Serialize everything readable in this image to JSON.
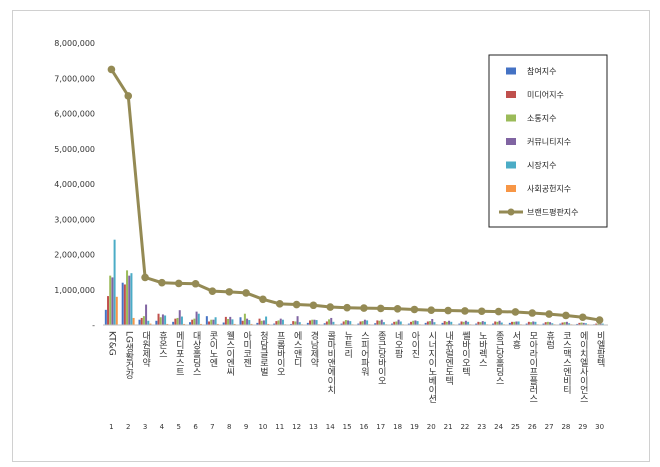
{
  "chart_data": {
    "type": "bar",
    "title": "",
    "xlabel": "",
    "ylabel": "",
    "ylim": [
      0,
      8000000
    ],
    "y_ticks": [
      "-",
      "1,000,000",
      "2,000,000",
      "3,000,000",
      "4,000,000",
      "5,000,000",
      "6,000,000",
      "7,000,000",
      "8,000,000"
    ],
    "grid": false,
    "legend_position": "top-right",
    "indices": [
      "1",
      "2",
      "3",
      "4",
      "5",
      "6",
      "7",
      "8",
      "9",
      "10",
      "11",
      "12",
      "13",
      "14",
      "15",
      "16",
      "17",
      "18",
      "19",
      "20",
      "21",
      "22",
      "23",
      "24",
      "25",
      "26",
      "27",
      "28",
      "29",
      "30"
    ],
    "categories": [
      "KT&G",
      "LG생활건강",
      "대원제약",
      "휴온스",
      "메디포스트",
      "대상홀딩스",
      "콧이노엔",
      "웰스이엔씨",
      "아미코젠",
      "청담글로벌",
      "프롬바이오",
      "에스앤디",
      "경남제약",
      "콜마비앤에이치",
      "뉴트리",
      "스피어파워",
      "종근당바이오",
      "네오팜",
      "아이진",
      "시너지이노베이션",
      "내츄럴엔도텍",
      "쎌바이오텍",
      "노바렉스",
      "종근당홀딩스",
      "서흥",
      "모아라이프플러스",
      "휴럼",
      "코스맥스엔비티",
      "에이치엘사이언스",
      "비엘팜텍"
    ],
    "series": [
      {
        "name": "참여지수",
        "color": "#4472c4",
        "values": [
          430000,
          1200000,
          150000,
          120000,
          90000,
          80000,
          250000,
          70000,
          220000,
          60000,
          40000,
          30000,
          60000,
          50000,
          40000,
          40000,
          50000,
          40000,
          40000,
          60000,
          60000,
          40000,
          40000,
          40000,
          60000,
          40000,
          40000,
          40000,
          30000,
          20000
        ]
      },
      {
        "name": "미디어지수",
        "color": "#c0504d",
        "values": [
          820000,
          1150000,
          200000,
          320000,
          180000,
          150000,
          100000,
          230000,
          120000,
          180000,
          110000,
          110000,
          130000,
          100000,
          100000,
          100000,
          130000,
          90000,
          90000,
          100000,
          110000,
          100000,
          90000,
          100000,
          90000,
          90000,
          80000,
          70000,
          60000,
          40000
        ]
      },
      {
        "name": "소통지수",
        "color": "#9bbb59",
        "values": [
          1400000,
          1550000,
          250000,
          220000,
          200000,
          180000,
          150000,
          170000,
          320000,
          120000,
          130000,
          100000,
          150000,
          160000,
          140000,
          110000,
          120000,
          100000,
          120000,
          110000,
          90000,
          90000,
          80000,
          90000,
          90000,
          80000,
          90000,
          80000,
          70000,
          40000
        ]
      },
      {
        "name": "커뮤니티지수",
        "color": "#8064a2",
        "values": [
          1350000,
          1400000,
          580000,
          300000,
          420000,
          380000,
          150000,
          230000,
          180000,
          130000,
          180000,
          250000,
          150000,
          200000,
          130000,
          150000,
          150000,
          150000,
          130000,
          170000,
          120000,
          120000,
          110000,
          120000,
          100000,
          100000,
          80000,
          90000,
          60000,
          40000
        ]
      },
      {
        "name": "시장지수",
        "color": "#4bacc6",
        "values": [
          2420000,
          1470000,
          120000,
          270000,
          240000,
          320000,
          220000,
          160000,
          140000,
          240000,
          150000,
          80000,
          140000,
          90000,
          110000,
          130000,
          80000,
          100000,
          110000,
          80000,
          90000,
          90000,
          90000,
          70000,
          100000,
          90000,
          50000,
          50000,
          50000,
          40000
        ]
      },
      {
        "name": "사회공헌지수",
        "color": "#f79646",
        "values": [
          800000,
          200000,
          40000,
          30000,
          30000,
          30000,
          30000,
          30000,
          30000,
          30000,
          20000,
          20000,
          20000,
          20000,
          20000,
          20000,
          20000,
          20000,
          20000,
          20000,
          20000,
          20000,
          20000,
          20000,
          20000,
          20000,
          20000,
          20000,
          20000,
          10000
        ]
      },
      {
        "name": "브랜드평판지수",
        "color": "#948a54",
        "type": "line",
        "values": [
          7250000,
          6500000,
          1350000,
          1200000,
          1180000,
          1170000,
          960000,
          940000,
          910000,
          730000,
          600000,
          580000,
          560000,
          510000,
          490000,
          480000,
          470000,
          460000,
          440000,
          420000,
          410000,
          400000,
          390000,
          380000,
          370000,
          340000,
          310000,
          270000,
          220000,
          140000
        ]
      }
    ]
  }
}
